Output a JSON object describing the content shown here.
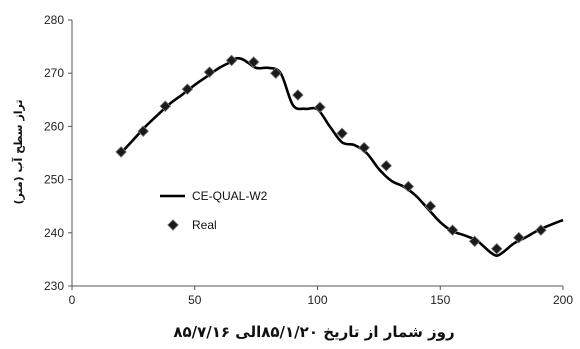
{
  "chart_data": {
    "type": "line",
    "title": "",
    "xlabel": "روز شمار از تاریخ ۸۵/۱/۲۰الی ۸۵/۷/۱۶",
    "ylabel": "تراز سطح آب (متر)",
    "xlim": [
      0,
      200
    ],
    "ylim": [
      230,
      280
    ],
    "xticks": [
      0,
      50,
      100,
      150,
      200
    ],
    "yticks": [
      230,
      240,
      250,
      260,
      270,
      280
    ],
    "grid": false,
    "legend_position": "center-left",
    "series": [
      {
        "name": "CE-QUAL-W2",
        "style": "line",
        "color": "#000000",
        "x": [
          20,
          25,
          30,
          35,
          40,
          45,
          50,
          55,
          60,
          65,
          67,
          70,
          75,
          80,
          85,
          90,
          95,
          100,
          105,
          110,
          115,
          120,
          125,
          130,
          135,
          140,
          145,
          150,
          155,
          160,
          165,
          170,
          173,
          176,
          180,
          185,
          190,
          195,
          200
        ],
        "y": [
          255.0,
          257.5,
          260.0,
          262.2,
          264.3,
          266.0,
          267.8,
          269.4,
          271.0,
          272.2,
          272.8,
          272.5,
          271.0,
          271.0,
          270.0,
          264.0,
          263.3,
          263.2,
          260.0,
          257.0,
          256.5,
          255.0,
          252.0,
          249.8,
          248.7,
          247.0,
          244.5,
          242.0,
          240.3,
          239.5,
          238.5,
          236.5,
          235.7,
          236.5,
          238.0,
          239.2,
          240.5,
          241.5,
          242.4
        ]
      },
      {
        "name": "Real",
        "style": "marker",
        "marker": "diamond",
        "color": "#1a1a1a",
        "x": [
          20,
          29,
          38,
          47,
          56,
          65,
          74,
          83,
          92,
          101,
          110,
          119,
          128,
          137,
          146,
          155,
          164,
          173,
          182,
          191
        ],
        "y": [
          255.2,
          259.1,
          263.8,
          267.0,
          270.2,
          272.4,
          272.1,
          270.0,
          265.9,
          263.6,
          258.7,
          256.0,
          252.6,
          248.7,
          245.0,
          240.5,
          238.4,
          237.0,
          239.1,
          240.5
        ]
      }
    ]
  }
}
